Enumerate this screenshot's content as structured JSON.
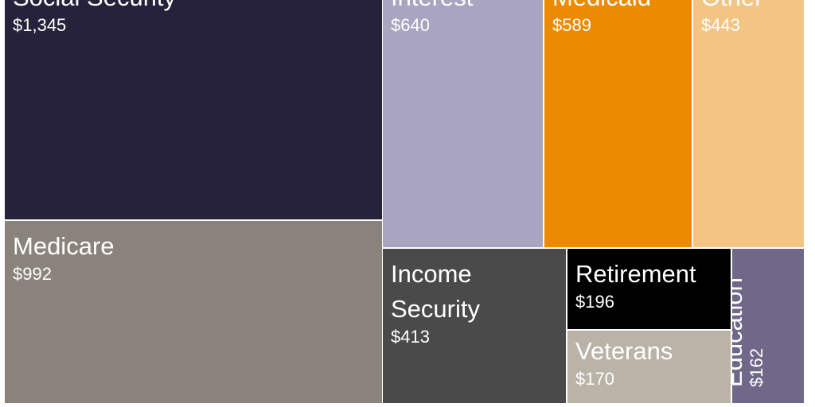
{
  "chart_data": {
    "type": "treemap",
    "title": "",
    "items": [
      {
        "name": "Social Security",
        "value": 1345,
        "label": "$1,345",
        "color": "#27223b"
      },
      {
        "name": "Medicare",
        "value": 992,
        "label": "$992",
        "color": "#8a837b"
      },
      {
        "name": "Interest",
        "value": 640,
        "label": "$640",
        "color": "#a9a4bf"
      },
      {
        "name": "Medicaid",
        "value": 589,
        "label": "$589",
        "color": "#ec8a00"
      },
      {
        "name": "Other",
        "value": 443,
        "label": "$443",
        "color": "#f3c585"
      },
      {
        "name": "Income Security",
        "value": 413,
        "label": "$413",
        "color": "#4a4a4a"
      },
      {
        "name": "Retirement",
        "value": 196,
        "label": "$196",
        "color": "#000000"
      },
      {
        "name": "Veterans",
        "value": 170,
        "label": "$170",
        "color": "#bab3a8"
      },
      {
        "name": "Education",
        "value": 162,
        "label": "$162",
        "color": "#6f6888"
      }
    ]
  }
}
